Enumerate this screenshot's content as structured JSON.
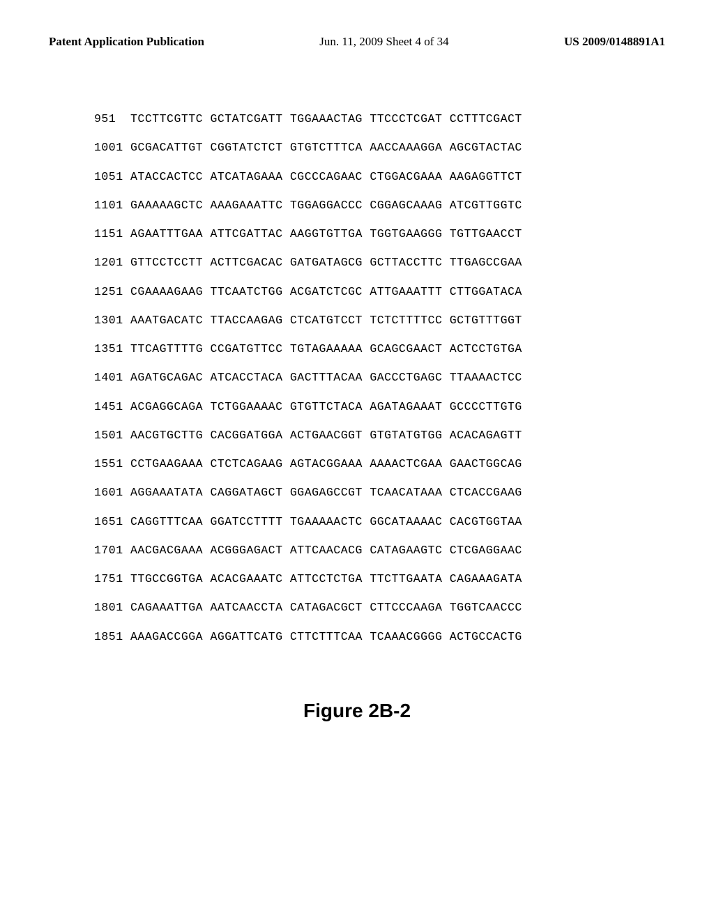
{
  "header": {
    "left": "Patent Application Publication",
    "center": "Jun. 11, 2009  Sheet 4 of 34",
    "right": "US 2009/0148891A1"
  },
  "sequence": {
    "rows": [
      {
        "pos": "951",
        "s1": "TCCTTCGTTC",
        "s2": "GCTATCGATT",
        "s3": "TGGAAACTAG",
        "s4": "TTCCCTCGAT",
        "s5": "CCTTTCGACT"
      },
      {
        "pos": "1001",
        "s1": "GCGACATTGT",
        "s2": "CGGTATCTCT",
        "s3": "GTGTCTTTCA",
        "s4": "AACCAAAGGA",
        "s5": "AGCGTACTAC"
      },
      {
        "pos": "1051",
        "s1": "ATACCACTCC",
        "s2": "ATCATAGAAA",
        "s3": "CGCCCAGAAC",
        "s4": "CTGGACGAAA",
        "s5": "AAGAGGTTCT"
      },
      {
        "pos": "1101",
        "s1": "GAAAAAGCTC",
        "s2": "AAAGAAATTC",
        "s3": "TGGAGGACCC",
        "s4": "CGGAGCAAAG",
        "s5": "ATCGTTGGTC"
      },
      {
        "pos": "1151",
        "s1": "AGAATTTGAA",
        "s2": "ATTCGATTAC",
        "s3": "AAGGTGTTGA",
        "s4": "TGGTGAAGGG",
        "s5": "TGTTGAACCT"
      },
      {
        "pos": "1201",
        "s1": "GTTCCTCCTT",
        "s2": "ACTTCGACAC",
        "s3": "GATGATAGCG",
        "s4": "GCTTACCTTC",
        "s5": "TTGAGCCGAA"
      },
      {
        "pos": "1251",
        "s1": "CGAAAAGAAG",
        "s2": "TTCAATCTGG",
        "s3": "ACGATCTCGC",
        "s4": "ATTGAAATTT",
        "s5": "CTTGGATACA"
      },
      {
        "pos": "1301",
        "s1": "AAATGACATC",
        "s2": "TTACCAAGAG",
        "s3": "CTCATGTCCT",
        "s4": "TCTCTTTTCC",
        "s5": "GCTGTTTGGT"
      },
      {
        "pos": "1351",
        "s1": "TTCAGTTTTG",
        "s2": "CCGATGTTCC",
        "s3": "TGTAGAAAAA",
        "s4": "GCAGCGAACT",
        "s5": "ACTCCTGTGA"
      },
      {
        "pos": "1401",
        "s1": "AGATGCAGAC",
        "s2": "ATCACCTACA",
        "s3": "GACTTTACAA",
        "s4": "GACCCTGAGC",
        "s5": "TTAAAACTCC"
      },
      {
        "pos": "1451",
        "s1": "ACGAGGCAGA",
        "s2": "TCTGGAAAAC",
        "s3": "GTGTTCTACA",
        "s4": "AGATAGAAAT",
        "s5": "GCCCCTTGTG"
      },
      {
        "pos": "1501",
        "s1": "AACGTGCTTG",
        "s2": "CACGGATGGA",
        "s3": "ACTGAACGGT",
        "s4": "GTGTATGTGG",
        "s5": "ACACAGAGTT"
      },
      {
        "pos": "1551",
        "s1": "CCTGAAGAAA",
        "s2": "CTCTCAGAAG",
        "s3": "AGTACGGAAA",
        "s4": "AAAACTCGAA",
        "s5": "GAACTGGCAG"
      },
      {
        "pos": "1601",
        "s1": "AGGAAATATA",
        "s2": "CAGGATAGCT",
        "s3": "GGAGAGCCGT",
        "s4": "TCAACATAAA",
        "s5": "CTCACCGAAG"
      },
      {
        "pos": "1651",
        "s1": "CAGGTTTCAA",
        "s2": "GGATCCTTTT",
        "s3": "TGAAAAACTC",
        "s4": "GGCATAAAAC",
        "s5": "CACGTGGTAA"
      },
      {
        "pos": "1701",
        "s1": "AACGACGAAA",
        "s2": "ACGGGAGACT",
        "s3": "ATTCAACACG",
        "s4": "CATAGAAGTC",
        "s5": "CTCGAGGAAC"
      },
      {
        "pos": "1751",
        "s1": "TTGCCGGTGA",
        "s2": "ACACGAAATC",
        "s3": "ATTCCTCTGA",
        "s4": "TTCTTGAATA",
        "s5": "CAGAAAGATA"
      },
      {
        "pos": "1801",
        "s1": "CAGAAATTGA",
        "s2": "AATCAACCTA",
        "s3": "CATAGACGCT",
        "s4": "CTTCCCAAGA",
        "s5": "TGGTCAACCC"
      },
      {
        "pos": "1851",
        "s1": "AAAGACCGGA",
        "s2": "AGGATTCATG",
        "s3": "CTTCTTTCAA",
        "s4": "TCAAACGGGG",
        "s5": "ACTGCCACTG"
      }
    ]
  },
  "figure": {
    "label": "Figure 2B-2"
  }
}
